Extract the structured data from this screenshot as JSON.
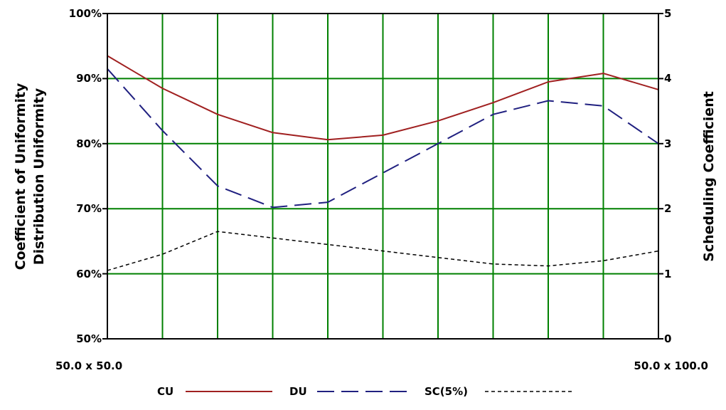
{
  "chart_data": {
    "type": "line",
    "x_start_label": "50.0 x 50.0",
    "x_end_label": "50.0 x 100.0",
    "x": [
      0,
      1,
      2,
      3,
      4,
      5,
      6,
      7,
      8,
      9
    ],
    "y_left": {
      "label_line1": "Coefficient of Uniformity",
      "label_line2": "Distribution Uniformity",
      "ylim": [
        50,
        100
      ],
      "ticks": [
        100,
        90,
        80,
        70,
        60,
        50
      ],
      "tick_labels": [
        "100%",
        "90%",
        "80%",
        "70%",
        "60%",
        "50%"
      ]
    },
    "y_right": {
      "label": "Scheduling Coefficient",
      "ylim": [
        0,
        5
      ],
      "ticks": [
        5,
        4,
        3,
        2,
        1,
        0
      ],
      "tick_labels": [
        "5",
        "4",
        "3",
        "2",
        "1",
        "0"
      ]
    },
    "series": [
      {
        "name": "CU",
        "axis": "left",
        "color": "#a02020",
        "dash": "solid",
        "points": [
          [
            0,
            93.5
          ],
          [
            0.5,
            91.0
          ],
          [
            1,
            88.5
          ],
          [
            2,
            84.5
          ],
          [
            3,
            81.7
          ],
          [
            4,
            80.6
          ],
          [
            5,
            81.3
          ],
          [
            6,
            83.5
          ],
          [
            7,
            86.3
          ],
          [
            8,
            89.5
          ],
          [
            9,
            90.8
          ],
          [
            10,
            88.3
          ]
        ]
      },
      {
        "name": "DU",
        "axis": "left",
        "color": "#202080",
        "dash": "longdash",
        "points": [
          [
            0,
            91.5
          ],
          [
            1,
            82.0
          ],
          [
            2,
            73.5
          ],
          [
            3,
            70.2
          ],
          [
            4,
            71.0
          ],
          [
            5,
            75.5
          ],
          [
            6,
            80.0
          ],
          [
            7,
            84.5
          ],
          [
            8,
            86.6
          ],
          [
            9,
            85.8
          ],
          [
            10,
            80.0
          ]
        ]
      },
      {
        "name": "SC(5%)",
        "axis": "right",
        "color": "#000000",
        "dash": "shortdash",
        "points": [
          [
            0,
            1.05
          ],
          [
            1,
            1.3
          ],
          [
            2,
            1.65
          ],
          [
            3,
            1.55
          ],
          [
            4,
            1.45
          ],
          [
            5,
            1.35
          ],
          [
            6,
            1.25
          ],
          [
            7,
            1.15
          ],
          [
            8,
            1.12
          ],
          [
            9,
            1.2
          ],
          [
            10,
            1.35
          ]
        ]
      }
    ],
    "grid": true,
    "grid_color": "#008000",
    "vertical_divisions": 10,
    "legend_position": "bottom",
    "legend": [
      {
        "label": "CU",
        "color": "#a02020",
        "dash": "solid"
      },
      {
        "label": "DU",
        "color": "#202080",
        "dash": "longdash"
      },
      {
        "label": "SC(5%)",
        "color": "#000000",
        "dash": "shortdash"
      }
    ]
  }
}
